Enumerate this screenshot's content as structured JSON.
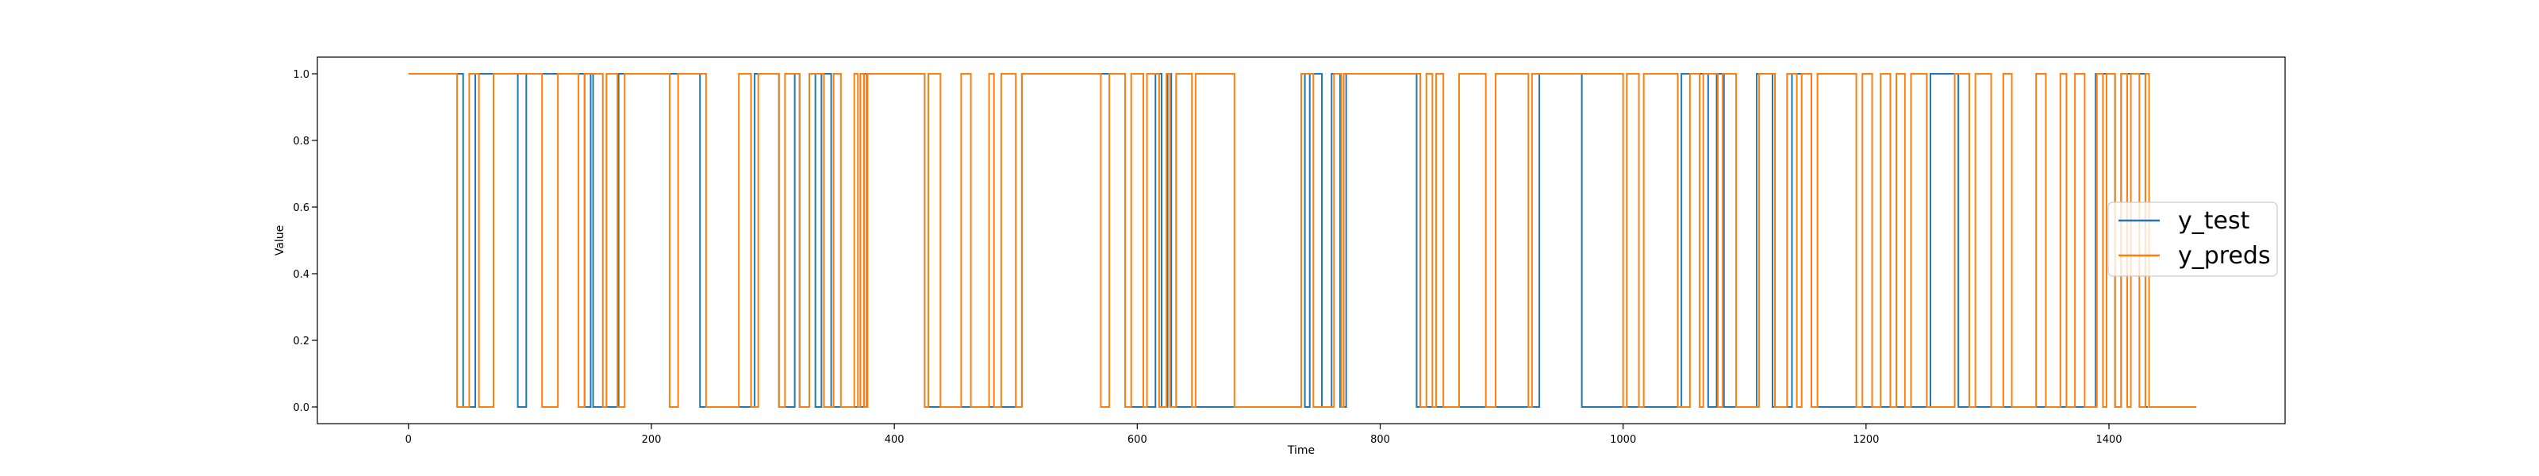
{
  "chart_data": {
    "type": "line",
    "title": "",
    "xlabel": "Time",
    "ylabel": "Value",
    "xlim": [
      -75,
      1545
    ],
    "ylim": [
      -0.05,
      1.05
    ],
    "xticks": [
      0,
      200,
      400,
      600,
      800,
      1000,
      1200,
      1400
    ],
    "yticks": [
      0.0,
      0.2,
      0.4,
      0.6,
      0.8,
      1.0
    ],
    "xtick_labels": [
      "0",
      "200",
      "400",
      "600",
      "800",
      "1000",
      "1200",
      "1400"
    ],
    "ytick_labels": [
      "0.0",
      "0.2",
      "0.4",
      "0.6",
      "0.8",
      "1.0"
    ],
    "grid": false,
    "legend": {
      "position": "right",
      "entries": [
        "y_test",
        "y_preds"
      ]
    },
    "series": [
      {
        "name": "y_test",
        "color": "#1f77b4",
        "x_end": 1432,
        "changes": [
          [
            0,
            1
          ],
          [
            45,
            0
          ],
          [
            55,
            1
          ],
          [
            90,
            0
          ],
          [
            97,
            1
          ],
          [
            145,
            0
          ],
          [
            150,
            1
          ],
          [
            152,
            0
          ],
          [
            173,
            1
          ],
          [
            240,
            0
          ],
          [
            285,
            1
          ],
          [
            305,
            0
          ],
          [
            318,
            1
          ],
          [
            322,
            0
          ],
          [
            330,
            1
          ],
          [
            335,
            0
          ],
          [
            340,
            1
          ],
          [
            348,
            0
          ],
          [
            375,
            1
          ],
          [
            425,
            0
          ],
          [
            505,
            1
          ],
          [
            590,
            0
          ],
          [
            615,
            1
          ],
          [
            620,
            0
          ],
          [
            625,
            1
          ],
          [
            628,
            0
          ],
          [
            735,
            1
          ],
          [
            738,
            0
          ],
          [
            742,
            1
          ],
          [
            752,
            0
          ],
          [
            760,
            1
          ],
          [
            767,
            0
          ],
          [
            772,
            1
          ],
          [
            830,
            0
          ],
          [
            931,
            1
          ],
          [
            966,
            0
          ],
          [
            1048,
            1
          ],
          [
            1070,
            0
          ],
          [
            1077,
            1
          ],
          [
            1083,
            0
          ],
          [
            1110,
            1
          ],
          [
            1123,
            0
          ],
          [
            1139,
            1
          ],
          [
            1155,
            0
          ],
          [
            1253,
            1
          ],
          [
            1276,
            0
          ],
          [
            1389,
            1
          ],
          [
            1405,
            0
          ],
          [
            1410,
            1
          ],
          [
            1430,
            0
          ]
        ]
      },
      {
        "name": "y_preds",
        "color": "#ff7f0e",
        "x_end": 1472,
        "changes": [
          [
            0,
            1
          ],
          [
            40,
            0
          ],
          [
            50,
            1
          ],
          [
            58,
            0
          ],
          [
            70,
            1
          ],
          [
            110,
            0
          ],
          [
            123,
            1
          ],
          [
            140,
            0
          ],
          [
            145,
            1
          ],
          [
            160,
            0
          ],
          [
            163,
            1
          ],
          [
            172,
            0
          ],
          [
            178,
            1
          ],
          [
            215,
            0
          ],
          [
            222,
            1
          ],
          [
            245,
            0
          ],
          [
            272,
            1
          ],
          [
            282,
            0
          ],
          [
            288,
            1
          ],
          [
            305,
            0
          ],
          [
            310,
            1
          ],
          [
            322,
            0
          ],
          [
            330,
            1
          ],
          [
            342,
            0
          ],
          [
            350,
            1
          ],
          [
            356,
            0
          ],
          [
            367,
            1
          ],
          [
            370,
            0
          ],
          [
            372,
            1
          ],
          [
            375,
            0
          ],
          [
            377,
            1
          ],
          [
            377.5,
            0
          ],
          [
            378,
            1
          ],
          [
            425,
            0
          ],
          [
            428,
            1
          ],
          [
            438,
            0
          ],
          [
            455,
            1
          ],
          [
            463,
            0
          ],
          [
            478,
            1
          ],
          [
            482,
            0
          ],
          [
            488,
            1
          ],
          [
            500,
            0
          ],
          [
            505,
            1
          ],
          [
            570,
            0
          ],
          [
            577,
            1
          ],
          [
            590,
            0
          ],
          [
            595,
            1
          ],
          [
            605,
            0
          ],
          [
            608,
            1
          ],
          [
            618,
            0
          ],
          [
            624,
            1
          ],
          [
            627,
            0
          ],
          [
            632,
            1
          ],
          [
            645,
            0
          ],
          [
            648,
            1
          ],
          [
            680,
            0
          ],
          [
            735,
            1
          ],
          [
            745,
            0
          ],
          [
            762,
            1
          ],
          [
            768,
            0
          ],
          [
            770,
            1
          ],
          [
            833,
            0
          ],
          [
            838,
            1
          ],
          [
            843,
            0
          ],
          [
            846,
            1
          ],
          [
            852,
            0
          ],
          [
            865,
            1
          ],
          [
            887,
            0
          ],
          [
            895,
            1
          ],
          [
            922,
            0
          ],
          [
            925,
            1
          ],
          [
            1000,
            0
          ],
          [
            1003,
            1
          ],
          [
            1013,
            0
          ],
          [
            1017,
            1
          ],
          [
            1045,
            0
          ],
          [
            1055,
            1
          ],
          [
            1063,
            0
          ],
          [
            1066,
            1
          ],
          [
            1078,
            0
          ],
          [
            1082,
            1
          ],
          [
            1093,
            0
          ],
          [
            1112,
            1
          ],
          [
            1125,
            0
          ],
          [
            1135,
            1
          ],
          [
            1143,
            0
          ],
          [
            1147,
            1
          ],
          [
            1155,
            0
          ],
          [
            1160,
            1
          ],
          [
            1192,
            0
          ],
          [
            1197,
            1
          ],
          [
            1205,
            0
          ],
          [
            1212,
            1
          ],
          [
            1220,
            0
          ],
          [
            1225,
            1
          ],
          [
            1232,
            0
          ],
          [
            1237,
            1
          ],
          [
            1250,
            0
          ],
          [
            1273,
            1
          ],
          [
            1285,
            0
          ],
          [
            1290,
            1
          ],
          [
            1303,
            0
          ],
          [
            1313,
            1
          ],
          [
            1320,
            0
          ],
          [
            1340,
            1
          ],
          [
            1348,
            0
          ],
          [
            1360,
            1
          ],
          [
            1365,
            0
          ],
          [
            1372,
            1
          ],
          [
            1380,
            0
          ],
          [
            1390,
            1
          ],
          [
            1395,
            0
          ],
          [
            1398,
            1
          ],
          [
            1405,
            0
          ],
          [
            1410,
            1
          ],
          [
            1415,
            0
          ],
          [
            1418,
            1
          ],
          [
            1425,
            0
          ],
          [
            1430,
            1
          ],
          [
            1433,
            0
          ]
        ]
      }
    ]
  }
}
